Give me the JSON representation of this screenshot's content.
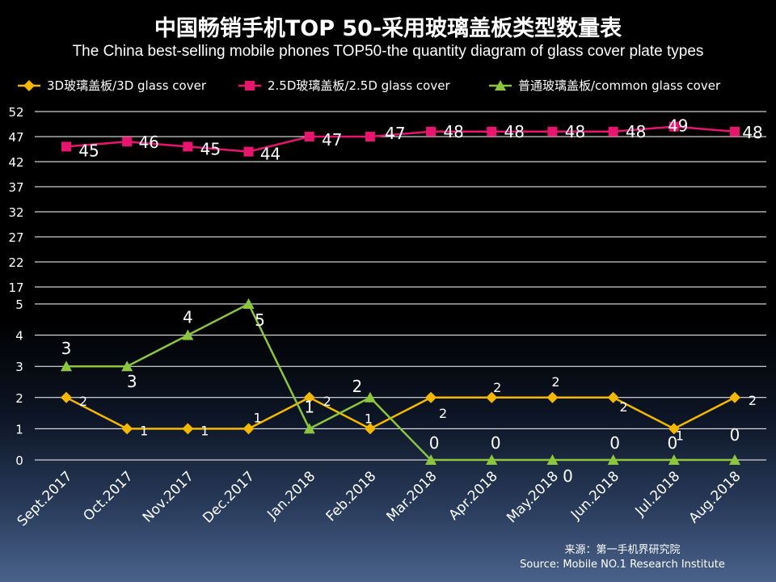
{
  "chart_data": {
    "type": "line",
    "title": "中国畅销手机TOP 50-采用玻璃盖板类型数量表",
    "subtitle": "The China best-selling mobile phones TOP50-the quantity diagram of glass cover plate types",
    "categories": [
      "Sept.2017",
      "Oct.2017",
      "Nov.2017",
      "Dec.2017",
      "Jan.2018",
      "Feb.2018",
      "Mar.2018",
      "Apr.2018",
      "May.2018",
      "Jun.2018",
      "Jul.2018",
      "Aug.2018"
    ],
    "series": [
      {
        "name": "3D玻璃盖板/3D glass cover",
        "color": "#f5b800",
        "marker": "diamond",
        "values": [
          2,
          1,
          1,
          1,
          2,
          1,
          2,
          2,
          2,
          2,
          1,
          2
        ]
      },
      {
        "name": "2.5D玻璃盖板/2.5D glass cover",
        "color": "#e8156f",
        "marker": "square",
        "values": [
          45,
          46,
          45,
          44,
          47,
          47,
          48,
          48,
          48,
          48,
          49,
          48
        ]
      },
      {
        "name": "普通玻璃盖板/common glass cover",
        "color": "#8cc63f",
        "marker": "triangle",
        "values": [
          3,
          3,
          4,
          5,
          1,
          2,
          0,
          0,
          0,
          0,
          0,
          0
        ]
      }
    ],
    "y_axis_upper": {
      "ticks": [
        "52",
        "47",
        "42",
        "37",
        "32",
        "27",
        "22",
        "17"
      ],
      "range": [
        17,
        52
      ]
    },
    "y_axis_lower": {
      "ticks": [
        "5",
        "4",
        "3",
        "2",
        "1",
        "0"
      ],
      "range": [
        0,
        5
      ]
    },
    "grid": true,
    "legend": "top"
  },
  "source": {
    "cn": "来源：第一手机界研究院",
    "en": "Source: Mobile NO.1 Research Institute"
  }
}
